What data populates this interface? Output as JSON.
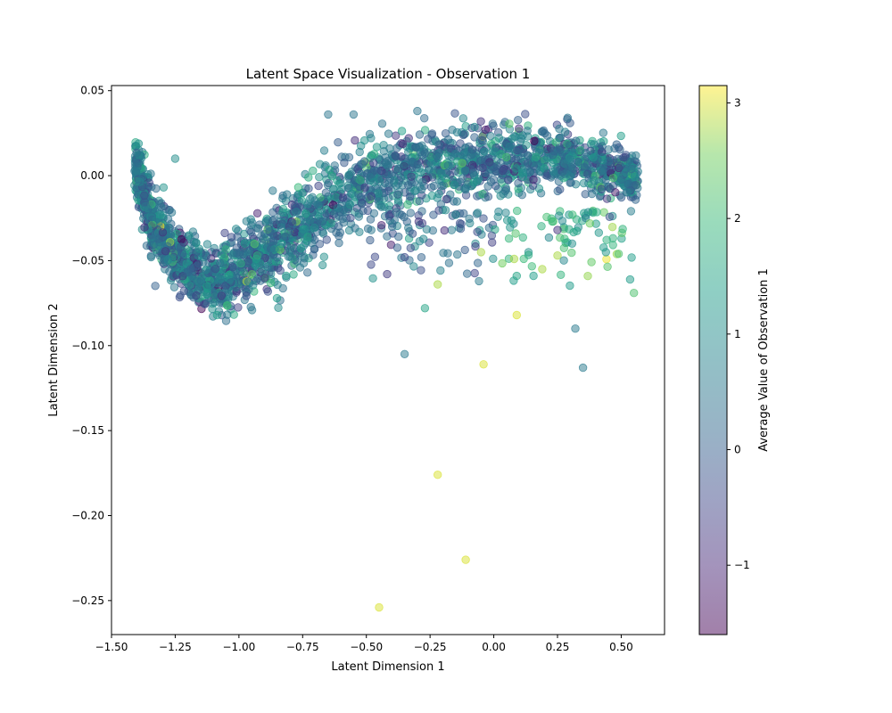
{
  "chart_data": {
    "type": "scatter",
    "title": "Latent Space Visualization - Observation 1",
    "xlabel": "Latent Dimension 1",
    "ylabel": "Latent Dimension 2",
    "colorbar_label": "Average Value of Observation 1",
    "xlim": [
      -1.5,
      0.67
    ],
    "ylim": [
      -0.27,
      0.053
    ],
    "color_range": [
      -1.6,
      3.15
    ],
    "xticks": [
      -1.5,
      -1.25,
      -1.0,
      -0.75,
      -0.5,
      -0.25,
      0.0,
      0.25,
      0.5
    ],
    "xtick_labels": [
      "−1.50",
      "−1.25",
      "−1.00",
      "−0.75",
      "−0.50",
      "−0.25",
      "0.00",
      "0.25",
      "0.50"
    ],
    "yticks": [
      0.05,
      0.0,
      -0.05,
      -0.1,
      -0.15,
      -0.2,
      -0.25
    ],
    "ytick_labels": [
      "0.05",
      "0.00",
      "−0.05",
      "−0.10",
      "−0.15",
      "−0.20",
      "−0.25"
    ],
    "cticks": [
      -1,
      0,
      1,
      2,
      3
    ],
    "ctick_labels": [
      "−1",
      "0",
      "1",
      "2",
      "3"
    ],
    "colormap": "viridis",
    "alpha": 0.5,
    "grid": false,
    "points": [
      {
        "x": -0.45,
        "y": -0.254,
        "c": 3.0
      },
      {
        "x": -0.11,
        "y": -0.226,
        "c": 3.0
      },
      {
        "x": -0.22,
        "y": -0.176,
        "c": 3.0
      },
      {
        "x": -0.04,
        "y": -0.111,
        "c": 3.0
      },
      {
        "x": -0.35,
        "y": -0.105,
        "c": 0.6
      },
      {
        "x": 0.09,
        "y": -0.082,
        "c": 3.0
      },
      {
        "x": 0.32,
        "y": -0.09,
        "c": 0.6
      },
      {
        "x": 0.35,
        "y": -0.113,
        "c": 0.6
      },
      {
        "x": 0.55,
        "y": -0.069,
        "c": 2.2
      },
      {
        "x": -1.25,
        "y": 0.01,
        "c": 1.0
      },
      {
        "x": -0.65,
        "y": 0.036,
        "c": 0.5
      },
      {
        "x": -0.55,
        "y": 0.036,
        "c": 0.5
      },
      {
        "x": -0.3,
        "y": 0.038,
        "c": 0.5
      },
      {
        "x": 0.29,
        "y": 0.034,
        "c": 0.5
      },
      {
        "x": -0.22,
        "y": -0.064,
        "c": 2.8
      },
      {
        "x": -0.27,
        "y": -0.078,
        "c": 1.5
      },
      {
        "x": 0.09,
        "y": -0.059,
        "c": 1.5
      },
      {
        "x": 0.25,
        "y": -0.047,
        "c": 2.8
      },
      {
        "x": 0.19,
        "y": -0.055,
        "c": 2.8
      },
      {
        "x": 0.44,
        "y": -0.045,
        "c": 1.2
      },
      {
        "x": 0.49,
        "y": -0.046,
        "c": 2.2
      },
      {
        "x": 0.25,
        "y": -0.032,
        "c": -0.8
      },
      {
        "x": -0.05,
        "y": -0.045,
        "c": 2.8
      },
      {
        "x": 0.08,
        "y": -0.049,
        "c": 2.8
      },
      {
        "x": -0.35,
        "y": -0.048,
        "c": -0.4
      }
    ]
  }
}
